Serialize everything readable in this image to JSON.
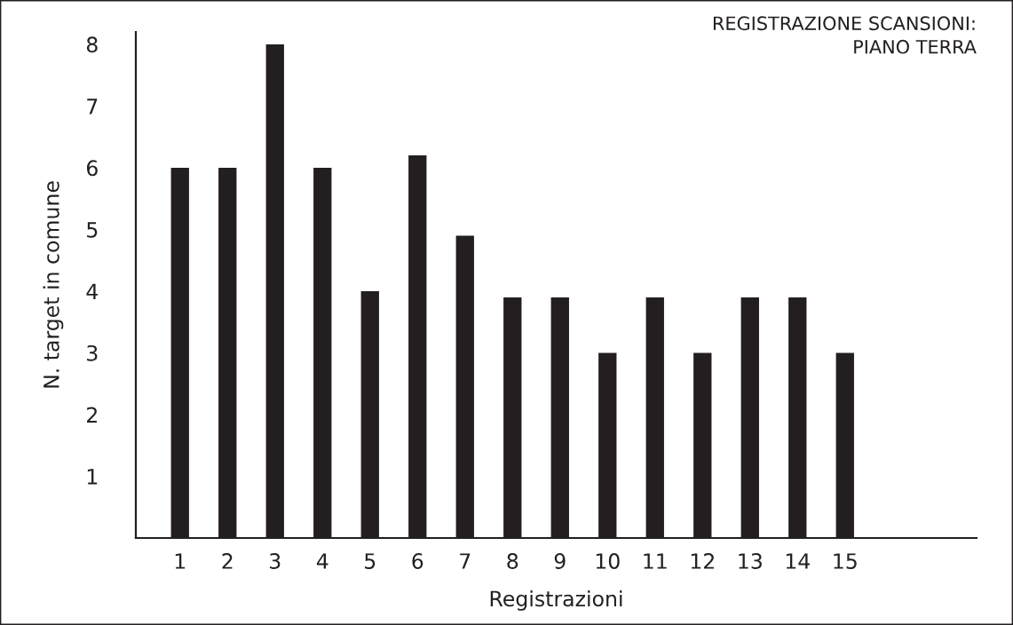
{
  "chart_data": {
    "type": "bar",
    "title": "REGISTRAZIONE SCANSIONI:\nPIANO TERRA",
    "xlabel": "Registrazioni",
    "ylabel": "N. target in comune",
    "categories": [
      "1",
      "2",
      "3",
      "4",
      "5",
      "6",
      "7",
      "8",
      "9",
      "10",
      "11",
      "12",
      "13",
      "14",
      "15"
    ],
    "values": [
      6,
      6,
      8,
      6,
      4,
      6.2,
      4.9,
      3.9,
      3.9,
      3,
      3.9,
      3,
      3.9,
      3.9,
      3
    ],
    "color": "#231f20",
    "ylim": [
      0,
      8.2
    ],
    "yticks": [
      1,
      2,
      3,
      4,
      5,
      6,
      7,
      8
    ],
    "grid": false,
    "legend": false
  }
}
